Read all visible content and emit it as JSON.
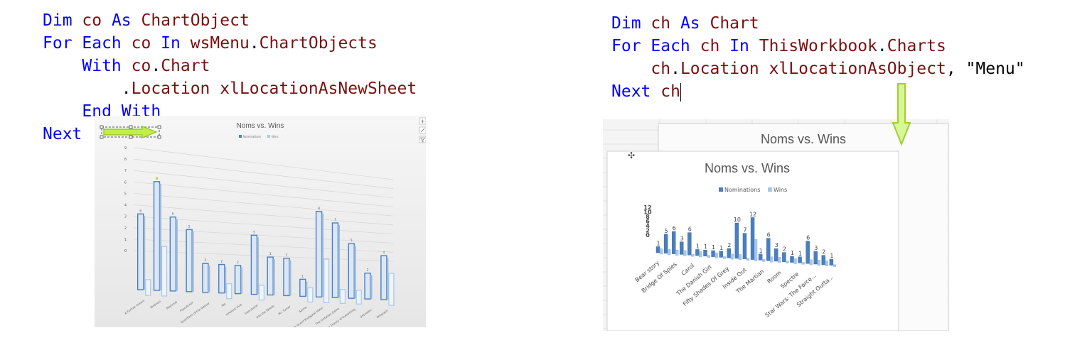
{
  "left_code": {
    "lines": [
      [
        {
          "t": "Dim ",
          "c": "kw"
        },
        {
          "t": "co ",
          "c": "id"
        },
        {
          "t": "As ",
          "c": "kw"
        },
        {
          "t": "ChartObject",
          "c": "id"
        }
      ],
      [
        {
          "t": "For Each ",
          "c": "kw"
        },
        {
          "t": "co ",
          "c": "id"
        },
        {
          "t": "In ",
          "c": "kw"
        },
        {
          "t": "wsMenu",
          "c": "id"
        },
        {
          "t": ".",
          "c": "pl"
        },
        {
          "t": "ChartObjects",
          "c": "id"
        }
      ],
      [
        {
          "t": "    With ",
          "c": "kw"
        },
        {
          "t": "co",
          "c": "id"
        },
        {
          "t": ".",
          "c": "pl"
        },
        {
          "t": "Chart",
          "c": "id"
        }
      ],
      [
        {
          "t": "        .",
          "c": "pl"
        },
        {
          "t": "Location ",
          "c": "id"
        },
        {
          "t": "xlLocationAsNewSheet",
          "c": "id"
        }
      ],
      [
        {
          "t": "    End With",
          "c": "kw"
        }
      ],
      [
        {
          "t": "Next",
          "c": "kw"
        }
      ]
    ]
  },
  "right_code": {
    "lines": [
      [
        {
          "t": "Dim ",
          "c": "kw"
        },
        {
          "t": "ch ",
          "c": "id"
        },
        {
          "t": "As ",
          "c": "kw"
        },
        {
          "t": "Chart",
          "c": "id"
        }
      ],
      [
        {
          "t": "For Each ",
          "c": "kw"
        },
        {
          "t": "ch ",
          "c": "id"
        },
        {
          "t": "In ",
          "c": "kw"
        },
        {
          "t": "ThisWorkbook",
          "c": "id"
        },
        {
          "t": ".",
          "c": "pl"
        },
        {
          "t": "Charts",
          "c": "id"
        }
      ],
      [
        {
          "t": "    ch",
          "c": "id"
        },
        {
          "t": ".",
          "c": "pl"
        },
        {
          "t": "Location ",
          "c": "id"
        },
        {
          "t": "xlLocationAsObject",
          "c": "id"
        },
        {
          "t": ", \"Menu\"",
          "c": "pl"
        }
      ],
      [
        {
          "t": "Next ",
          "c": "kw"
        },
        {
          "t": "ch",
          "c": "id"
        }
      ]
    ]
  },
  "left_chart": {
    "title": "Noms vs. Wins",
    "legend": [
      "Nominations",
      "Wins"
    ],
    "colors": {
      "nominations": "#4a7fbf",
      "wins": "#a9c7ea"
    },
    "y_ticks": [
      "9",
      "8",
      "7",
      "6",
      "5",
      "4",
      "3",
      "2",
      "1",
      "0"
    ],
    "chart_data": {
      "type": "bar",
      "title": "Noms vs. Wins",
      "categories": [
        "A Further Dream",
        "Birdman",
        "Boyhood",
        "Foxcatcher",
        "Guardians of the Galaxy",
        "Ida",
        "Inherent Vice",
        "Interstellar",
        "Into the Woods",
        "Mr. Turner",
        "Selma",
        "The Grand Budapest Hotel",
        "The Imitation Game",
        "The Theory of Everything",
        "Unbroken",
        "Whiplash"
      ],
      "series": [
        {
          "name": "Nominations",
          "values": [
            6,
            9,
            6,
            5,
            2,
            2,
            2,
            5,
            3,
            3,
            1,
            8,
            7,
            5,
            2,
            4
          ]
        },
        {
          "name": "Wins",
          "values": [
            1,
            4,
            0,
            0,
            0,
            1,
            0,
            1,
            0,
            0,
            1,
            4,
            1,
            1,
            0,
            3
          ]
        }
      ],
      "ylim": [
        0,
        9
      ]
    }
  },
  "right_chart": {
    "back_title": "Noms vs. Wins",
    "title": "Noms vs. Wins",
    "legend": [
      "Nominations",
      "Wins"
    ],
    "colors": {
      "nominations": "#4a7fbf",
      "wins": "#a9c7ea"
    },
    "y_ticks": [
      "12",
      "10",
      "8",
      "6",
      "4",
      "2",
      "0"
    ],
    "x_labels": [
      "Bear story",
      "Bridge Of Spies",
      "Carol",
      "The Danish Girl",
      "Fifty Shades Of Grey",
      "Inside Out",
      "The Martian",
      "Room",
      "Spectre",
      "Star Wars: The Force...",
      "Straight Outta..."
    ],
    "chart_data": {
      "type": "bar",
      "title": "Noms vs. Wins",
      "series": [
        {
          "name": "Nominations",
          "values": [
            1,
            5,
            6,
            3,
            6,
            1,
            1,
            1,
            1,
            2,
            10,
            7,
            12,
            1,
            6,
            3,
            2,
            1,
            1,
            6,
            3,
            2,
            1
          ]
        },
        {
          "name": "Wins",
          "values": [
            1,
            1,
            1,
            1,
            0,
            1,
            0,
            1,
            0,
            1,
            1,
            0,
            6,
            0,
            1,
            1,
            0,
            1,
            0,
            1,
            1,
            1,
            0
          ]
        }
      ],
      "ylim": [
        0,
        12
      ]
    }
  }
}
